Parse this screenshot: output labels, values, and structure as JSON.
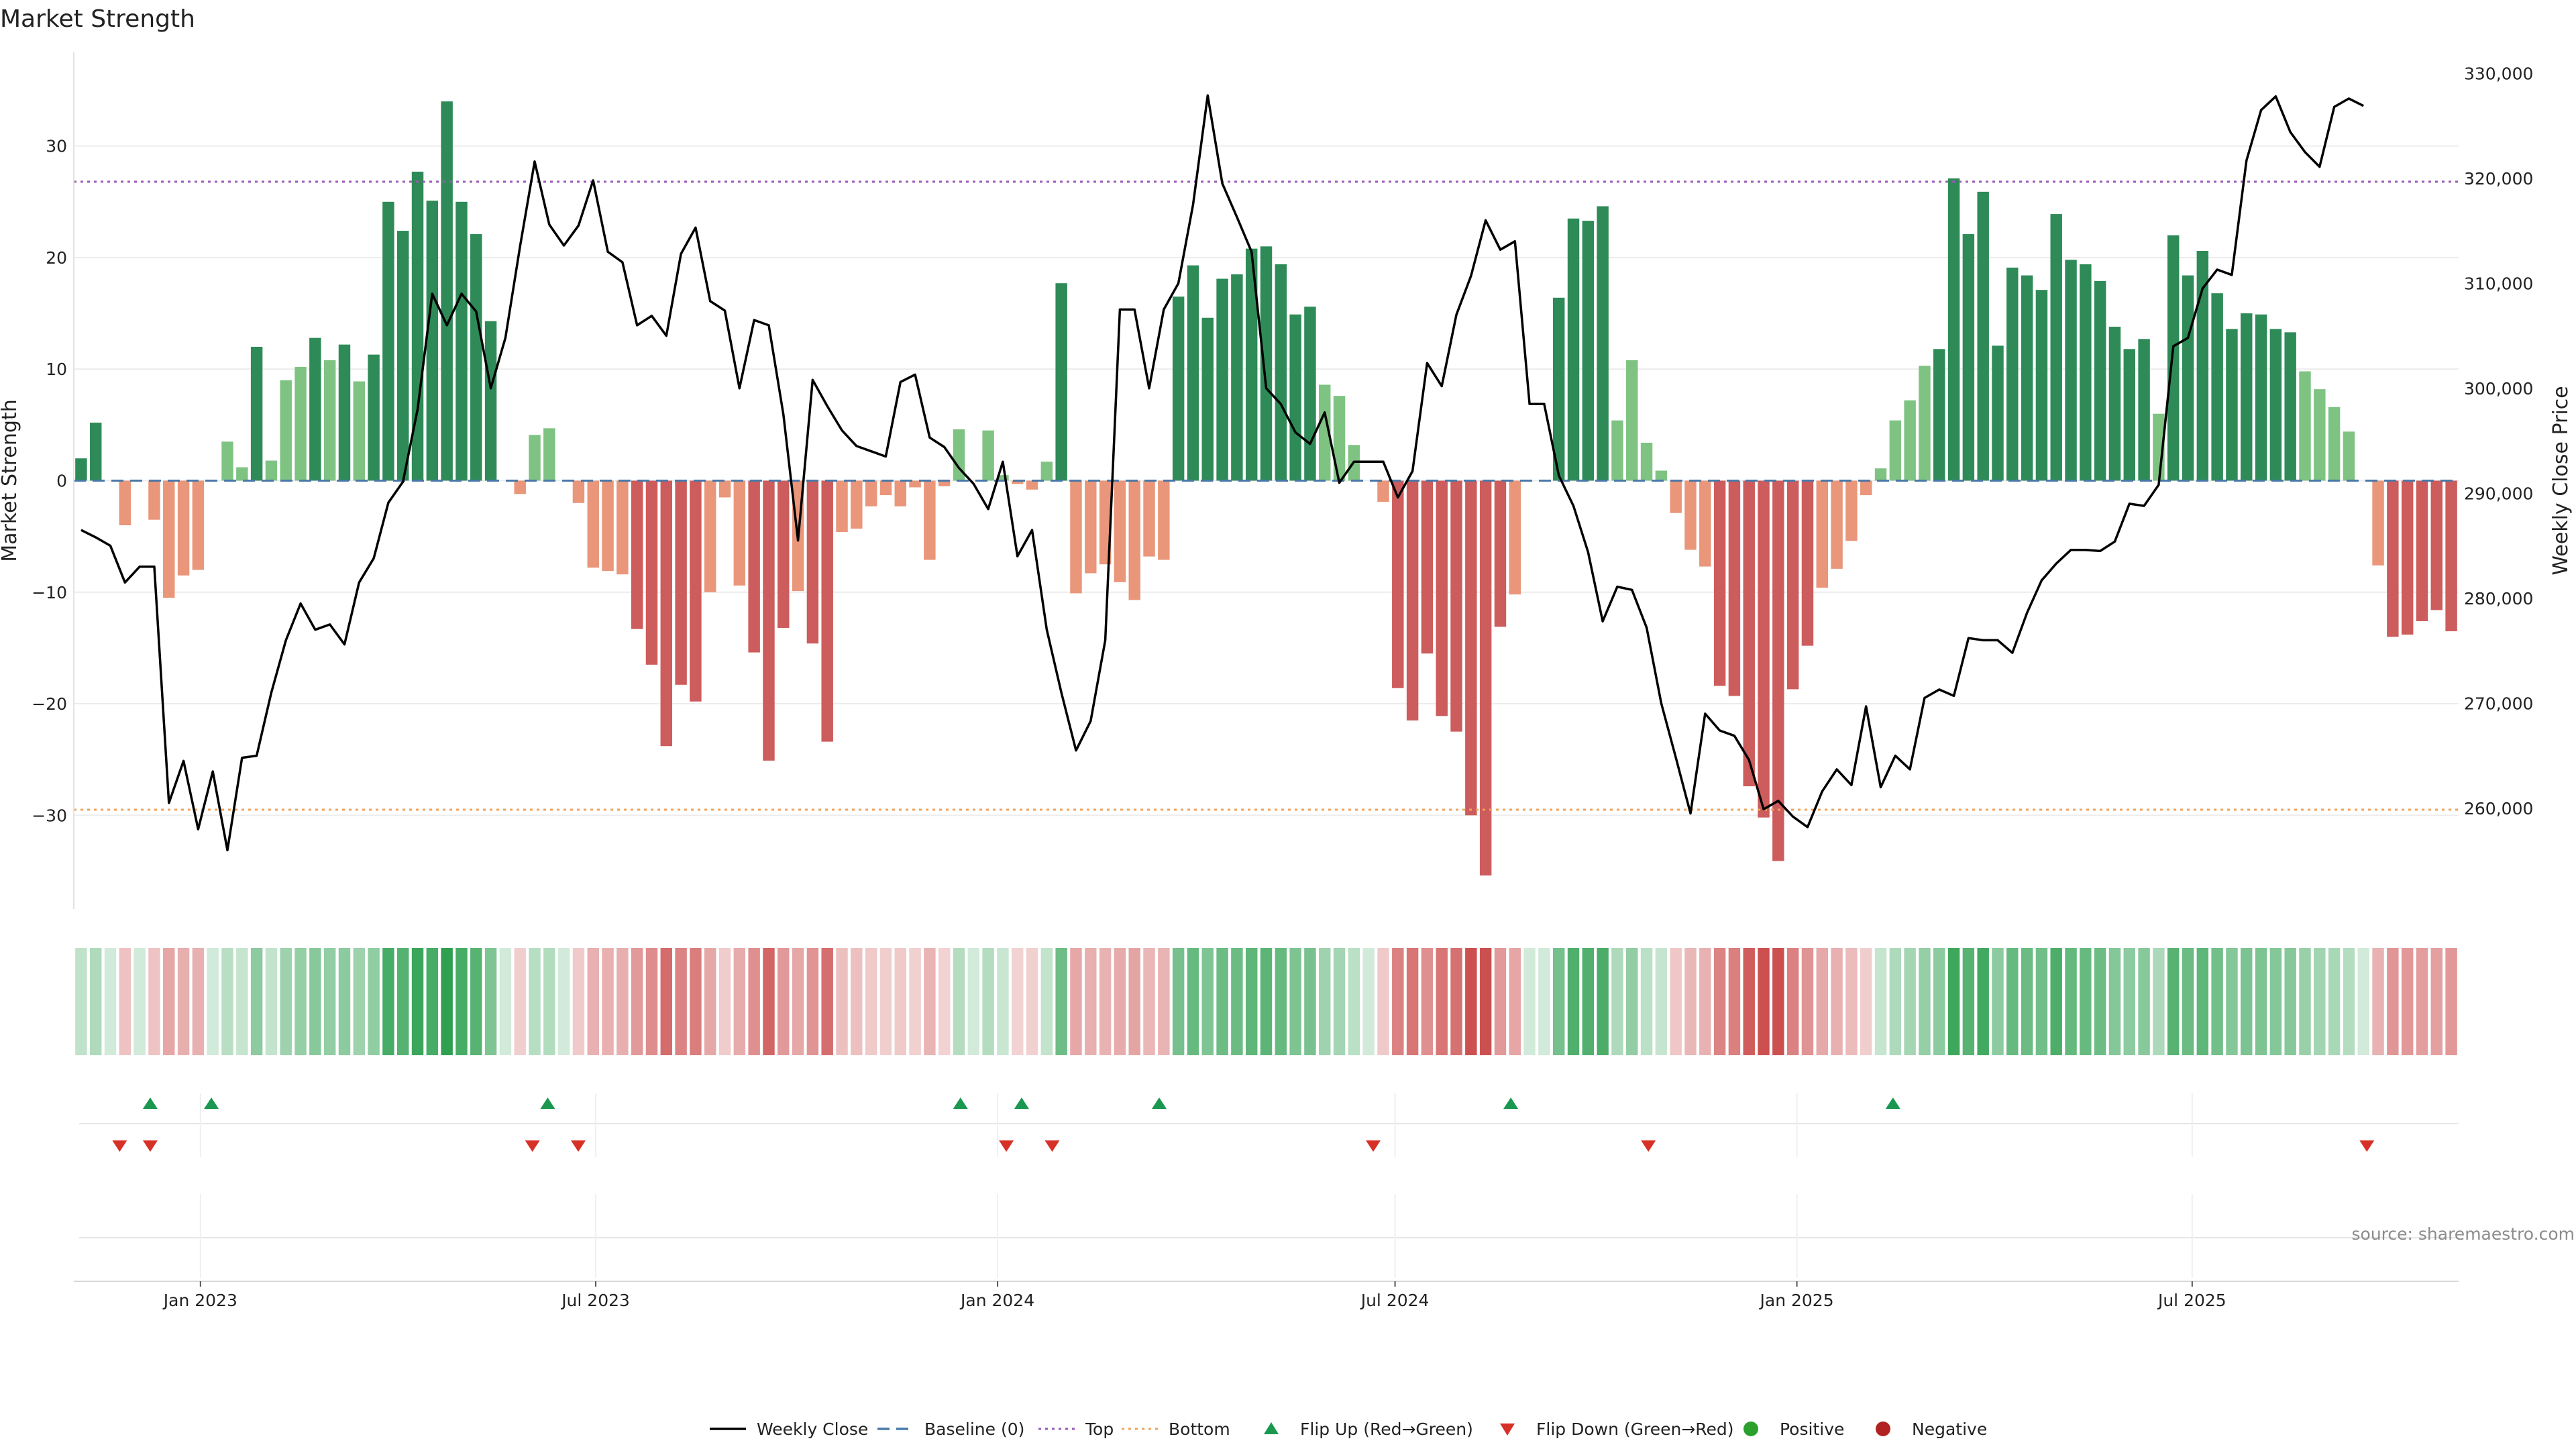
{
  "chart_data": {
    "type": "bar",
    "title": "Market Strength",
    "xlabel": "",
    "ylabel": "Market Strength",
    "ylabel_right": "Weekly Close Price",
    "ylim": [
      -38.4,
      38.4
    ],
    "ylim_right": [
      250400,
      332000
    ],
    "yticks": [
      -30,
      -20,
      -10,
      0,
      10,
      20,
      30
    ],
    "ytick_labels": [
      "−30",
      "−20",
      "−10",
      "0",
      "10",
      "20",
      "30"
    ],
    "yticks_right": [
      260000,
      270000,
      280000,
      290000,
      300000,
      310000,
      320000,
      330000
    ],
    "ytick_labels_right": [
      "260,000",
      "270,000",
      "280,000",
      "290,000",
      "300,000",
      "310,000",
      "320,000",
      "330,000"
    ],
    "x_start": "2022-11-04",
    "x_end": "2025-10-31",
    "xticks": [
      "2023-01-01",
      "2023-07-01",
      "2024-01-01",
      "2024-07-01",
      "2025-01-01",
      "2025-07-01"
    ],
    "xtick_labels": [
      "Jan 2023",
      "Jul 2023",
      "Jan 2024",
      "Jul 2024",
      "Jan 2025",
      "Jul 2025"
    ],
    "grid": true,
    "legend_position": "bottom",
    "colors": {
      "pos_strong": "#2e8b57",
      "pos_weak": "#7fc383",
      "neg_strong": "#cd5c5c",
      "neg_weak": "#e9967a",
      "line": "#000000",
      "baseline": "#4a78a8",
      "top": "#9b59b6",
      "bottom": "#f0a35a",
      "flip_up": "#1a9850",
      "flip_down": "#d73027",
      "positive": "#2ca02c",
      "negative": "#b22222"
    },
    "levels": {
      "baseline": 0,
      "top": 26.8,
      "bottom": -29.5
    },
    "strength": [
      2,
      5.2,
      0,
      -4,
      0,
      -3.5,
      -10.5,
      -8.5,
      -8,
      0,
      3.5,
      1.2,
      12,
      1.8,
      9,
      10.2,
      12.8,
      10.8,
      12.2,
      8.9,
      11.3,
      25,
      22.4,
      27.7,
      25.1,
      34,
      25,
      22.1,
      14.3,
      0,
      -1.2,
      4.1,
      4.7,
      0,
      -2,
      -7.8,
      -8.1,
      -8.4,
      -13.3,
      -16.5,
      -23.8,
      -18.3,
      -19.8,
      -10,
      -1.5,
      -9.4,
      -15.4,
      -25.1,
      -13.2,
      -9.9,
      -14.6,
      -23.4,
      -4.6,
      -4.3,
      -2.3,
      -1.3,
      -2.3,
      -0.6,
      -7.1,
      -0.5,
      4.6,
      0,
      4.5,
      0.5,
      -0.3,
      -0.8,
      1.7,
      17.7,
      -10.1,
      -8.3,
      -7.5,
      -9.1,
      -10.7,
      -6.8,
      -7.1,
      16.5,
      19.3,
      14.6,
      18.1,
      18.5,
      20.8,
      21,
      19.4,
      14.9,
      15.6,
      8.6,
      7.6,
      3.2,
      0,
      -1.9,
      -18.6,
      -21.5,
      -15.5,
      -21.1,
      -22.5,
      -30,
      -35.4,
      -13.1,
      -10.2,
      0,
      0,
      16.4,
      23.5,
      23.3,
      24.6,
      5.4,
      10.8,
      3.4,
      0.9,
      -2.9,
      -6.2,
      -7.7,
      -18.4,
      -19.3,
      -27.4,
      -30.2,
      -34.1,
      -18.7,
      -14.8,
      -9.6,
      -7.9,
      -5.4,
      -1.3,
      1.1,
      5.4,
      7.2,
      10.3,
      11.8,
      27.1,
      22.1,
      25.9,
      12.1,
      19.1,
      18.4,
      17.1,
      23.9,
      19.8,
      19.4,
      17.9,
      13.8,
      11.8,
      12.7,
      6,
      22,
      18.4,
      20.6,
      16.8,
      13.6,
      15,
      14.9,
      13.6,
      13.3,
      9.8,
      8.2,
      6.6,
      4.4,
      0,
      -7.6,
      -14,
      -13.8,
      -12.6,
      -11.6,
      -13.5
    ],
    "weekly_close": [
      286500,
      285800,
      285000,
      281500,
      283000,
      283000,
      260500,
      264500,
      258000,
      263500,
      256000,
      264800,
      265000,
      271000,
      276000,
      279500,
      277000,
      277500,
      275600,
      281500,
      283800,
      289100,
      291100,
      298000,
      309000,
      306000,
      309000,
      307300,
      300000,
      304800,
      313500,
      321600,
      315600,
      313600,
      315500,
      319800,
      313000,
      312000,
      306000,
      306900,
      305000,
      312800,
      315300,
      308300,
      307400,
      300000,
      306500,
      306000,
      297500,
      285500,
      300800,
      298300,
      296000,
      294500,
      294000,
      293500,
      300600,
      301300,
      295300,
      294400,
      292400,
      290900,
      288500,
      293000,
      284000,
      286500,
      277000,
      271000,
      265500,
      268300,
      276000,
      307500,
      307500,
      300000,
      307500,
      310000,
      317500,
      327900,
      319500,
      316300,
      313000,
      300000,
      298500,
      295800,
      294700,
      297700,
      291000,
      293000,
      293000,
      293000,
      289600,
      292100,
      302400,
      300200,
      307000,
      310700,
      316000,
      313200,
      314000,
      298500,
      298500,
      291700,
      288800,
      284400,
      277800,
      281100,
      280800,
      277200,
      270000,
      264800,
      259500,
      269000,
      267400,
      266900,
      264600,
      259900,
      260700,
      259200,
      258200,
      261600,
      263700,
      262200,
      269700,
      262000,
      265000,
      263700,
      270500,
      271300,
      270700,
      276200,
      276000,
      276000,
      274800,
      278600,
      281700,
      283300,
      284600,
      284600,
      284500,
      285400,
      289000,
      288800,
      290800,
      304000,
      304800,
      309500,
      311300,
      310800,
      321700,
      326500,
      327800,
      324400,
      322500,
      321100,
      326800,
      327600,
      326900
    ],
    "flip_up_dates": [
      "2022-12-09",
      "2023-01-06",
      "2023-06-09",
      "2023-12-15",
      "2024-01-12",
      "2024-03-15",
      "2024-08-23",
      "2025-02-14"
    ],
    "flip_down_dates": [
      "2022-11-25",
      "2022-12-09",
      "2023-06-02",
      "2023-06-23",
      "2024-01-05",
      "2024-01-26",
      "2024-06-21",
      "2024-10-25",
      "2025-09-19"
    ],
    "positive_dates": [],
    "negative_dates": [],
    "legend": [
      {
        "label": "Weekly Close",
        "kind": "line"
      },
      {
        "label": "Baseline (0)",
        "kind": "dash"
      },
      {
        "label": "Top",
        "kind": "dot"
      },
      {
        "label": "Bottom",
        "kind": "dot2"
      },
      {
        "label": "Flip Up (Red→Green)",
        "kind": "tri-up"
      },
      {
        "label": "Flip Down (Green→Red)",
        "kind": "tri-down"
      },
      {
        "label": "Positive",
        "kind": "circle-pos"
      },
      {
        "label": "Negative",
        "kind": "circle-neg"
      }
    ]
  },
  "source_note": "source: sharemaestro.com"
}
